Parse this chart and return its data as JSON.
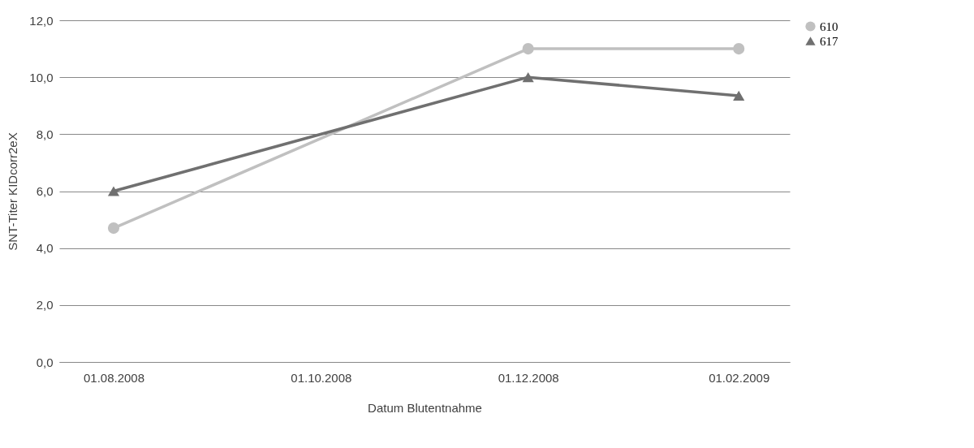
{
  "chart_data": {
    "type": "line",
    "xlabel": "Datum Blutentnahme",
    "ylabel": "SNT-Titer KIDcorr2eX",
    "x": [
      "2008-08-01",
      "2008-12-01",
      "2009-02-01"
    ],
    "series": [
      {
        "name": "610",
        "color": "#c0c0c0",
        "marker": "circle",
        "values": [
          4.7,
          11.0,
          11.0
        ]
      },
      {
        "name": "617",
        "color": "#707070",
        "marker": "triangle",
        "values": [
          6.0,
          10.0,
          9.35
        ]
      }
    ],
    "xlim": [
      "2008-07-16",
      "2009-02-16"
    ],
    "xticks": [
      {
        "value": "2008-08-01",
        "label": "01.08.2008"
      },
      {
        "value": "2008-10-01",
        "label": "01.10.2008"
      },
      {
        "value": "2008-12-01",
        "label": "01.12.2008"
      },
      {
        "value": "2009-02-01",
        "label": "01.02.2009"
      }
    ],
    "ylim": [
      0,
      12
    ],
    "yticks": [
      {
        "value": 0,
        "label": "0,0"
      },
      {
        "value": 2,
        "label": "2,0"
      },
      {
        "value": 4,
        "label": "4,0"
      },
      {
        "value": 6,
        "label": "6,0"
      },
      {
        "value": 8,
        "label": "8,0"
      },
      {
        "value": 10,
        "label": "10,0"
      },
      {
        "value": 12,
        "label": "12,0"
      }
    ],
    "grid": "y",
    "legend": "right",
    "line_style": "solid"
  }
}
